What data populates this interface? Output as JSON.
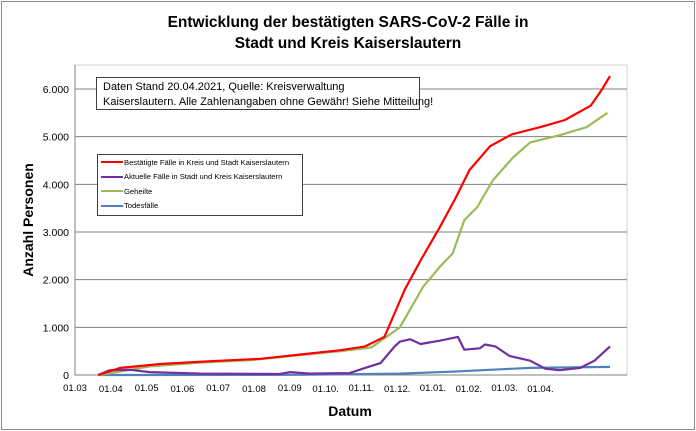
{
  "chart_data": {
    "type": "line",
    "title": "Entwicklung der bestätigten SARS-CoV-2 Fälle in Stadt und Kreis Kaiserslautern",
    "title_lines": [
      "Entwicklung der bestätigten SARS-CoV-2 Fälle in",
      "Stadt und Kreis Kaiserslautern"
    ],
    "xlabel": "Datum",
    "ylabel": "Anzahl Personen",
    "xlim": [
      "2020-03-01",
      "2021-04-20"
    ],
    "ylim": [
      0,
      6500
    ],
    "yticks": [
      0,
      1000,
      2000,
      3000,
      4000,
      5000,
      6000
    ],
    "ytick_labels": [
      "0",
      "1.000",
      "2.000",
      "3.000",
      "4.000",
      "5.000",
      "6.000"
    ],
    "xtick_labels": [
      "01.03",
      "01.04",
      "01.05",
      "01.06",
      "01.07",
      "01.08",
      "01.09",
      "01.10.",
      "01.11.",
      "01.12.",
      "01.01.",
      "01.02.",
      "01.03.",
      "01.04."
    ],
    "grid": "horizontal",
    "legend_placement": "left",
    "annotation": [
      "Daten Stand 20.04.2021, Quelle: Kreisverwaltung",
      "Kaiserslautern. Alle Zahlenangaben ohne Gewähr! Siehe Mitteilung!"
    ],
    "series": [
      {
        "name": "Bestätigte Fälle in Kreis und Stadt Kaiserslautern",
        "color": "#ff0000",
        "points": [
          [
            "2020-03-19",
            0
          ],
          [
            "2020-04-05",
            150
          ],
          [
            "2020-05-06",
            230
          ],
          [
            "2020-06-14",
            290
          ],
          [
            "2020-07-23",
            340
          ],
          [
            "2020-08-23",
            430
          ],
          [
            "2020-09-23",
            520
          ],
          [
            "2020-10-12",
            600
          ],
          [
            "2020-10-27",
            800
          ],
          [
            "2020-11-04",
            1300
          ],
          [
            "2020-11-12",
            1800
          ],
          [
            "2020-11-24",
            2400
          ],
          [
            "2020-12-09",
            3100
          ],
          [
            "2020-12-21",
            3700
          ],
          [
            "2021-01-01",
            4300
          ],
          [
            "2021-01-17",
            4800
          ],
          [
            "2021-02-03",
            5050
          ],
          [
            "2021-02-25",
            5200
          ],
          [
            "2021-03-16",
            5350
          ],
          [
            "2021-04-05",
            5650
          ],
          [
            "2021-04-14",
            6000
          ],
          [
            "2021-04-20",
            6270
          ]
        ]
      },
      {
        "name": "Aktuelle Fälle in Stadt und Kreis Kaiserslautern",
        "color": "#7030a0",
        "points": [
          [
            "2020-03-19",
            0
          ],
          [
            "2020-03-28",
            100
          ],
          [
            "2020-04-13",
            110
          ],
          [
            "2020-04-28",
            60
          ],
          [
            "2020-06-06",
            30
          ],
          [
            "2020-08-07",
            20
          ],
          [
            "2020-08-15",
            60
          ],
          [
            "2020-08-30",
            30
          ],
          [
            "2020-09-30",
            40
          ],
          [
            "2020-10-12",
            150
          ],
          [
            "2020-10-24",
            250
          ],
          [
            "2020-11-04",
            600
          ],
          [
            "2020-11-08",
            700
          ],
          [
            "2020-11-16",
            750
          ],
          [
            "2020-11-24",
            650
          ],
          [
            "2020-12-09",
            720
          ],
          [
            "2020-12-23",
            800
          ],
          [
            "2020-12-28",
            530
          ],
          [
            "2021-01-09",
            560
          ],
          [
            "2021-01-13",
            640
          ],
          [
            "2021-01-21",
            600
          ],
          [
            "2021-02-01",
            400
          ],
          [
            "2021-02-17",
            300
          ],
          [
            "2021-03-01",
            130
          ],
          [
            "2021-03-12",
            100
          ],
          [
            "2021-03-28",
            150
          ],
          [
            "2021-04-08",
            300
          ],
          [
            "2021-04-20",
            600
          ]
        ]
      },
      {
        "name": "Geheilte",
        "color": "#9bbb59",
        "points": [
          [
            "2020-03-20",
            0
          ],
          [
            "2020-04-28",
            180
          ],
          [
            "2020-06-06",
            260
          ],
          [
            "2020-07-15",
            310
          ],
          [
            "2020-08-23",
            420
          ],
          [
            "2020-09-23",
            500
          ],
          [
            "2020-10-17",
            580
          ],
          [
            "2020-11-08",
            1000
          ],
          [
            "2020-11-26",
            1850
          ],
          [
            "2020-12-09",
            2270
          ],
          [
            "2020-12-19",
            2550
          ],
          [
            "2020-12-28",
            3250
          ],
          [
            "2021-01-07",
            3520
          ],
          [
            "2021-01-19",
            4080
          ],
          [
            "2021-02-04",
            4570
          ],
          [
            "2021-02-17",
            4880
          ],
          [
            "2021-03-12",
            5030
          ],
          [
            "2021-04-02",
            5200
          ],
          [
            "2021-04-18",
            5500
          ]
        ]
      },
      {
        "name": "Todesfälle",
        "color": "#4f81bd",
        "points": [
          [
            "2020-03-19",
            0
          ],
          [
            "2020-08-23",
            5
          ],
          [
            "2020-11-08",
            30
          ],
          [
            "2020-12-18",
            70
          ],
          [
            "2021-01-25",
            120
          ],
          [
            "2021-02-17",
            150
          ],
          [
            "2021-04-20",
            170
          ]
        ]
      }
    ]
  }
}
